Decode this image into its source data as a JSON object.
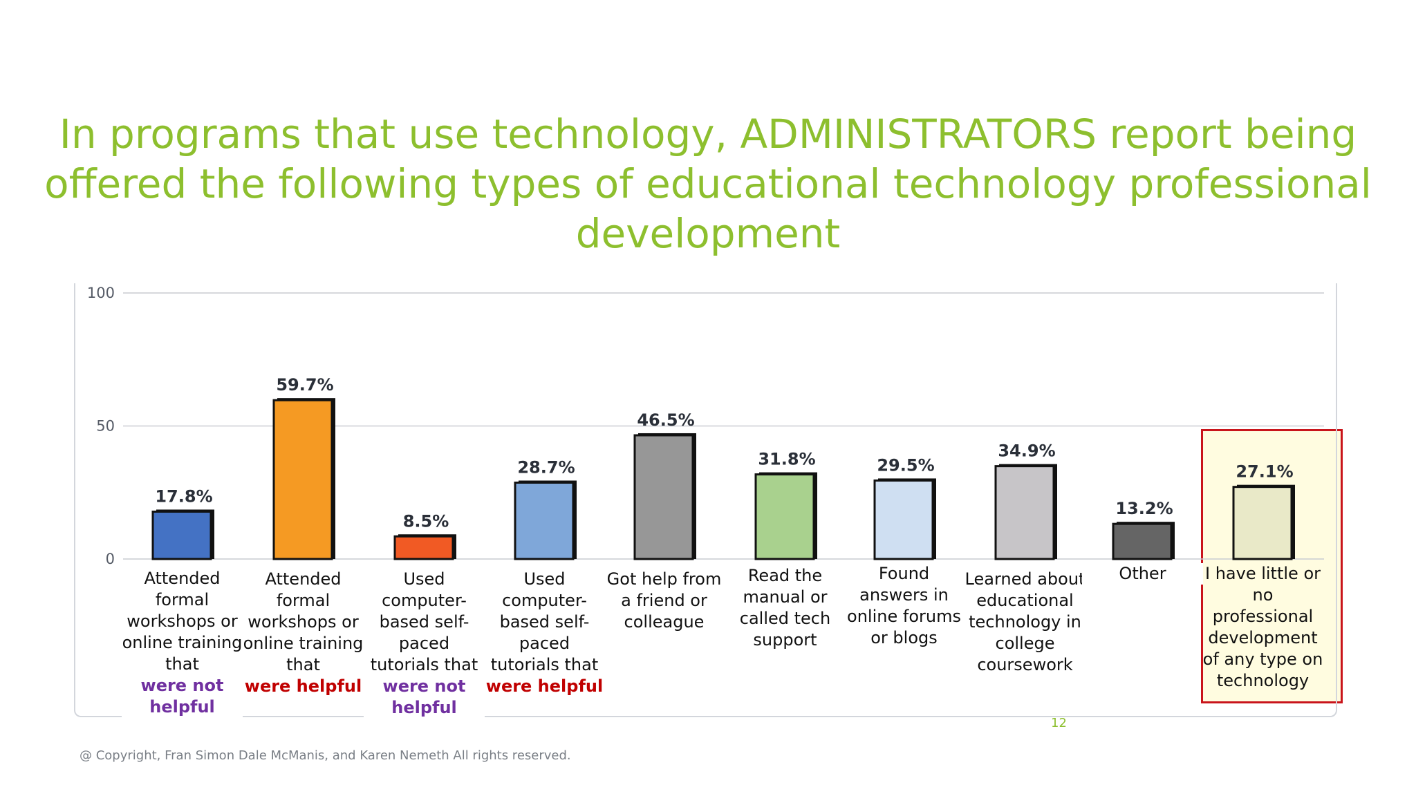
{
  "slide": {
    "title": "In programs that use technology, ADMINISTRATORS report being offered the following types of educational technology professional development",
    "page_number": "12",
    "copyright": "@ Copyright, Fran Simon Dale McManis, and Karen Nemeth All rights reserved."
  },
  "colors": {
    "title": "#8dbf2e",
    "highlight_border": "#c9141b",
    "highlight_fill": "#fffce0",
    "emphasis_purple": "#7030a0",
    "emphasis_red": "#c00000"
  },
  "chart_data": {
    "type": "bar",
    "title": "",
    "xlabel": "",
    "ylabel": "",
    "ylim": [
      0,
      100
    ],
    "yticks": [
      "0",
      "50",
      "100"
    ],
    "grid": true,
    "categories": [
      {
        "text": "Attended formal workshops or online training that",
        "emphasis": "were not helpful",
        "emphasis_color": "purple"
      },
      {
        "text": "Attended formal workshops or online training that",
        "emphasis": "were helpful",
        "emphasis_color": "red"
      },
      {
        "text": "Used computer-based self-paced tutorials that",
        "emphasis": "were not helpful",
        "emphasis_color": "purple"
      },
      {
        "text": "Used computer-based self-paced tutorials that",
        "emphasis": "were helpful",
        "emphasis_color": "red"
      },
      {
        "text": "Got help from a friend or colleague",
        "emphasis": "",
        "emphasis_color": ""
      },
      {
        "text": "Read the manual or called tech support",
        "emphasis": "",
        "emphasis_color": ""
      },
      {
        "text": "Found answers in online forums or blogs",
        "emphasis": "",
        "emphasis_color": ""
      },
      {
        "text": "Learned about educational technology in college coursework",
        "emphasis": "",
        "emphasis_color": ""
      },
      {
        "text": "Other",
        "emphasis": "",
        "emphasis_color": ""
      },
      {
        "text": "I have little or no professional development of any type on technology",
        "emphasis": "",
        "emphasis_color": ""
      }
    ],
    "values": [
      17.8,
      59.7,
      8.5,
      28.7,
      46.5,
      31.8,
      29.5,
      34.9,
      13.2,
      27.1
    ],
    "value_labels": [
      "17.8%",
      "59.7%",
      "8.5%",
      "28.7%",
      "46.5%",
      "31.8%",
      "29.5%",
      "34.9%",
      "13.2%",
      "27.1%"
    ],
    "bar_colors": [
      "#4472c4",
      "#f59a23",
      "#f15a24",
      "#7fa7d9",
      "#979797",
      "#a9d18e",
      "#cfdff2",
      "#c7c5c8",
      "#656565",
      "#e9e9c8"
    ],
    "highlighted_index": 9
  }
}
